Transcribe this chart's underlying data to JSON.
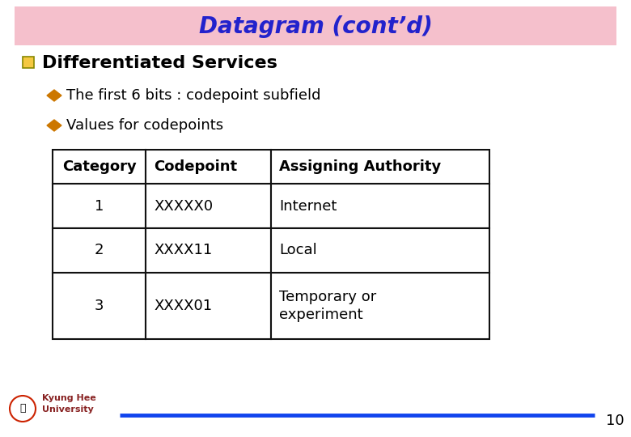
{
  "title": "Datagram (cont’d)",
  "title_color": "#2222CC",
  "title_bg_color": "#F5C0CC",
  "bg_color": "#FFFFFF",
  "bullet1_text": "Differentiated Services",
  "bullet1_color": "#000000",
  "sub_bullet1": "The first 6 bits : codepoint subfield",
  "sub_bullet2": "Values for codepoints",
  "diamond_color": "#CC7700",
  "square_color": "#F5C842",
  "square_border": "#888800",
  "table_headers": [
    "Category",
    "Codepoint",
    "Assigning Authority"
  ],
  "table_rows": [
    [
      "1",
      "XXXXX0",
      "Internet"
    ],
    [
      "2",
      "XXXX11",
      "Local"
    ],
    [
      "3",
      "XXXX01",
      "Temporary or\nexperiment"
    ]
  ],
  "table_border_color": "#111111",
  "footer_line_color": "#1144EE",
  "footer_page_num": "10",
  "footer_text": "Kyung Hee\nUniversity",
  "footer_text_color": "#882222"
}
